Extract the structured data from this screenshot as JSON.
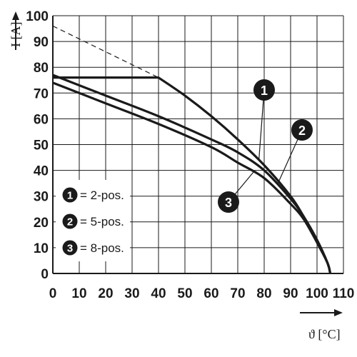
{
  "chart_data": {
    "type": "line",
    "x_axis": {
      "label": "ϑ [°C]",
      "range": [
        0,
        110
      ],
      "ticks": [
        0,
        10,
        20,
        30,
        40,
        50,
        60,
        70,
        80,
        90,
        100,
        110
      ],
      "tick_labels": [
        "0",
        "10",
        "20",
        "30",
        "40",
        "50",
        "60",
        "70",
        "80",
        "90",
        "100",
        "110"
      ]
    },
    "y_axis": {
      "label": "I [A]",
      "range": [
        0,
        100
      ],
      "ticks": [
        0,
        10,
        20,
        30,
        40,
        50,
        60,
        70,
        80,
        90,
        100
      ],
      "tick_labels": [
        "0",
        "10",
        "20",
        "30",
        "40",
        "50",
        "60",
        "70",
        "80",
        "90",
        "100"
      ]
    },
    "grid": true,
    "legend_position": "bottom-left",
    "series": [
      {
        "name": "2-pos.",
        "marker": "1",
        "x": [
          0,
          40,
          50,
          60,
          70,
          80,
          90,
          95,
          100,
          104,
          105
        ],
        "y": [
          76,
          76,
          69,
          61,
          52,
          42,
          30,
          22,
          13,
          4,
          0
        ]
      },
      {
        "name": "5-pos.",
        "marker": "2",
        "x": [
          0,
          20,
          40,
          60,
          70,
          80,
          90,
          95,
          100,
          104,
          105
        ],
        "y": [
          77,
          69,
          61,
          52,
          47,
          40,
          29,
          22,
          13,
          4,
          0
        ]
      },
      {
        "name": "8-pos.",
        "marker": "3",
        "x": [
          0,
          20,
          40,
          60,
          70,
          80,
          90,
          95,
          100,
          104,
          105
        ],
        "y": [
          74,
          66,
          58,
          49,
          43,
          37,
          27,
          21,
          12,
          4,
          0
        ]
      }
    ],
    "reference_line": {
      "style": "dashed",
      "x": [
        0,
        40
      ],
      "y": [
        96,
        76
      ]
    },
    "legend": [
      {
        "marker": "1",
        "text": "= 2-pos."
      },
      {
        "marker": "2",
        "text": "= 5-pos."
      },
      {
        "marker": "3",
        "text": "= 8-pos."
      }
    ],
    "callouts": [
      {
        "marker": "1",
        "series": 0,
        "at_x": 78
      },
      {
        "marker": "2",
        "series": 1,
        "at_x": 85
      },
      {
        "marker": "3",
        "series": 2,
        "at_x": 76
      }
    ]
  }
}
